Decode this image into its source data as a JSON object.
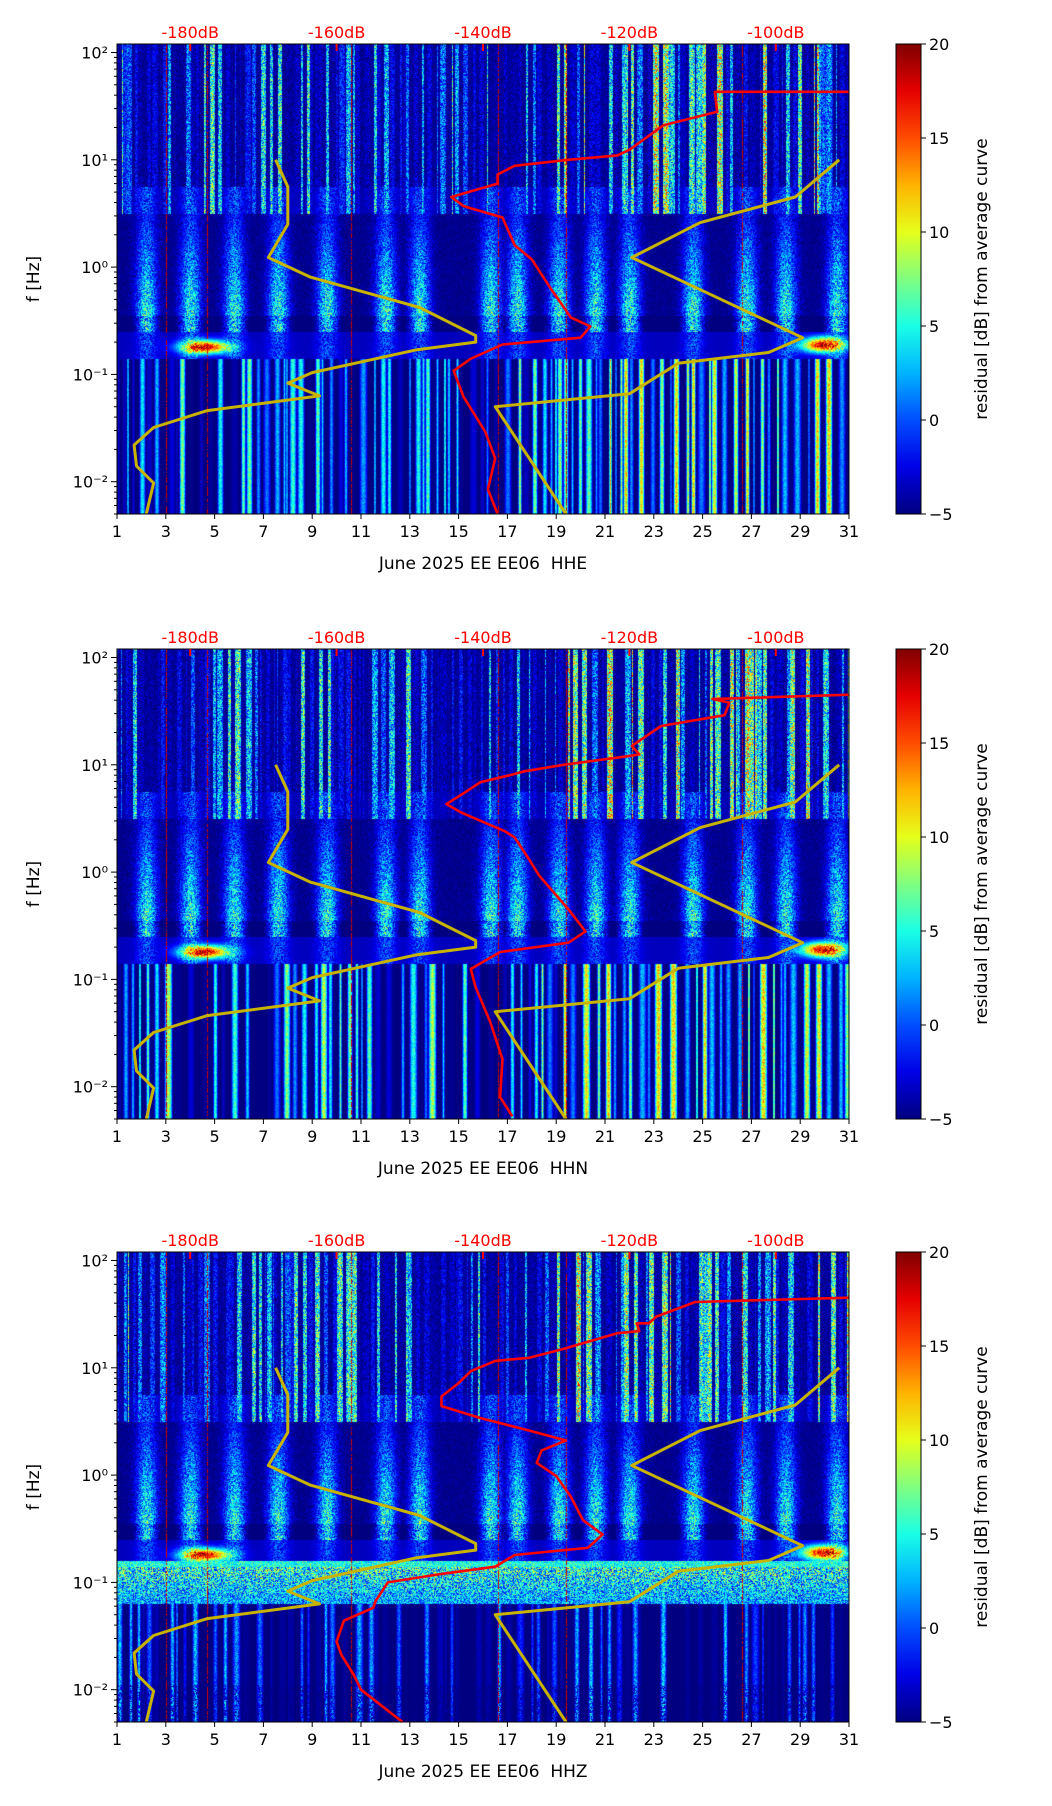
{
  "chart_data": [
    {
      "type": "heatmap",
      "channel": "HHE",
      "xlabel": "June 2025 EE EE06  HHE",
      "ylabel": "f [Hz]",
      "xlim": [
        1,
        31
      ],
      "ylim": [
        0.005,
        120
      ],
      "yscale": "log",
      "x_ticks": [
        1,
        3,
        5,
        7,
        9,
        11,
        13,
        15,
        17,
        19,
        21,
        23,
        25,
        27,
        29,
        31
      ],
      "y_ticks": [
        0.01,
        0.1,
        1,
        10,
        100
      ],
      "y_tick_labels": [
        "10⁻²",
        "10⁻¹",
        "10⁰",
        "10¹",
        "10²"
      ],
      "top_axis": [
        {
          "label": "-180dB",
          "day": 4
        },
        {
          "label": "-160dB",
          "day": 10
        },
        {
          "label": "-140dB",
          "day": 16
        },
        {
          "label": "-120dB",
          "day": 22
        },
        {
          "label": "-100dB",
          "day": 28
        }
      ],
      "colorbar": {
        "label": "residual [dB] from average curve",
        "range": [
          -5,
          20
        ],
        "ticks": [
          -5,
          0,
          5,
          10,
          15,
          20
        ],
        "colormap": "jet"
      },
      "series": [
        {
          "name": "psd-curve",
          "color": "#ff0000",
          "points": [
            [
              31,
              43
            ],
            [
              25.5,
              43
            ],
            [
              25.6,
              28
            ],
            [
              23.4,
              21
            ],
            [
              22,
              12.4
            ],
            [
              21.5,
              11
            ],
            [
              19.5,
              10
            ],
            [
              17.3,
              8.8
            ],
            [
              16.6,
              7.3
            ],
            [
              16.6,
              6
            ],
            [
              14.7,
              4.5
            ],
            [
              15.2,
              3.7
            ],
            [
              16.8,
              2.9
            ],
            [
              17.3,
              1.6
            ],
            [
              18,
              1.18
            ],
            [
              18.8,
              0.62
            ],
            [
              19.6,
              0.34
            ],
            [
              20.4,
              0.28
            ],
            [
              20,
              0.22
            ],
            [
              16.8,
              0.19
            ],
            [
              15.5,
              0.14
            ],
            [
              14.8,
              0.108
            ],
            [
              15.2,
              0.062
            ],
            [
              16.1,
              0.029
            ],
            [
              16.5,
              0.0165
            ],
            [
              16.2,
              0.0085
            ],
            [
              16.6,
              0.005
            ]
          ]
        },
        {
          "name": "model-curve-low",
          "color": "#c8b400",
          "points": [
            [
              7.5,
              10
            ],
            [
              8,
              5.6
            ],
            [
              8,
              2.5
            ],
            [
              7.2,
              1.23
            ],
            [
              8.9,
              0.81
            ],
            [
              13.4,
              0.42
            ],
            [
              15.7,
              0.23
            ],
            [
              15.7,
              0.2
            ],
            [
              13.3,
              0.17
            ],
            [
              9,
              0.104
            ],
            [
              8,
              0.083
            ],
            [
              9.3,
              0.063
            ],
            [
              4.7,
              0.046
            ],
            [
              2.5,
              0.032
            ],
            [
              1.7,
              0.022
            ],
            [
              1.8,
              0.014
            ],
            [
              2.5,
              0.0097
            ],
            [
              2.2,
              0.005
            ]
          ]
        },
        {
          "name": "model-curve-high",
          "color": "#c8b400",
          "points": [
            [
              30.6,
              10
            ],
            [
              28.8,
              4.5
            ],
            [
              24.9,
              2.6
            ],
            [
              22.1,
              1.23
            ],
            [
              29.1,
              0.22
            ],
            [
              27.7,
              0.16
            ],
            [
              24,
              0.127
            ],
            [
              22,
              0.066
            ],
            [
              16.5,
              0.05
            ],
            [
              19.4,
              0.005
            ]
          ]
        }
      ]
    },
    {
      "type": "heatmap",
      "channel": "HHN",
      "xlabel": "June 2025 EE EE06  HHN",
      "ylabel": "f [Hz]",
      "xlim": [
        1,
        31
      ],
      "ylim": [
        0.005,
        120
      ],
      "yscale": "log",
      "x_ticks": [
        1,
        3,
        5,
        7,
        9,
        11,
        13,
        15,
        17,
        19,
        21,
        23,
        25,
        27,
        29,
        31
      ],
      "y_ticks": [
        0.01,
        0.1,
        1,
        10,
        100
      ],
      "y_tick_labels": [
        "10⁻²",
        "10⁻¹",
        "10⁰",
        "10¹",
        "10²"
      ],
      "top_axis": [
        {
          "label": "-180dB",
          "day": 4
        },
        {
          "label": "-160dB",
          "day": 10
        },
        {
          "label": "-140dB",
          "day": 16
        },
        {
          "label": "-120dB",
          "day": 22
        },
        {
          "label": "-100dB",
          "day": 28
        }
      ],
      "colorbar": {
        "label": "residual [dB] from average curve",
        "range": [
          -5,
          20
        ],
        "ticks": [
          -5,
          0,
          5,
          10,
          15,
          20
        ],
        "colormap": "jet"
      },
      "series": [
        {
          "name": "psd-curve",
          "color": "#ff0000",
          "points": [
            [
              31,
              45
            ],
            [
              25.4,
              41
            ],
            [
              26.1,
              38
            ],
            [
              25.9,
              29
            ],
            [
              23.3,
              23
            ],
            [
              22.1,
              15
            ],
            [
              22.4,
              12.5
            ],
            [
              21.9,
              12
            ],
            [
              19.3,
              10
            ],
            [
              17.7,
              8.7
            ],
            [
              17.1,
              8
            ],
            [
              15.9,
              6.9
            ],
            [
              15.4,
              5.8
            ],
            [
              14.5,
              4.3
            ],
            [
              15.1,
              3.6
            ],
            [
              16.9,
              2.4
            ],
            [
              17.3,
              2.1
            ],
            [
              17.9,
              1.3
            ],
            [
              18.3,
              0.93
            ],
            [
              19.5,
              0.45
            ],
            [
              20.2,
              0.28
            ],
            [
              19.5,
              0.22
            ],
            [
              16.7,
              0.18
            ],
            [
              15.5,
              0.125
            ],
            [
              15.7,
              0.084
            ],
            [
              16.3,
              0.04
            ],
            [
              16.8,
              0.018
            ],
            [
              16.7,
              0.008
            ],
            [
              17.2,
              0.0053
            ]
          ]
        },
        {
          "name": "model-curve-low",
          "color": "#c8b400",
          "points": [
            [
              7.5,
              10
            ],
            [
              8,
              5.6
            ],
            [
              8,
              2.5
            ],
            [
              7.2,
              1.23
            ],
            [
              8.9,
              0.81
            ],
            [
              13.4,
              0.42
            ],
            [
              15.7,
              0.23
            ],
            [
              15.7,
              0.2
            ],
            [
              13.3,
              0.17
            ],
            [
              9,
              0.104
            ],
            [
              8,
              0.083
            ],
            [
              9.3,
              0.063
            ],
            [
              4.7,
              0.046
            ],
            [
              2.5,
              0.032
            ],
            [
              1.7,
              0.022
            ],
            [
              1.8,
              0.014
            ],
            [
              2.5,
              0.0097
            ],
            [
              2.2,
              0.005
            ]
          ]
        },
        {
          "name": "model-curve-high",
          "color": "#c8b400",
          "points": [
            [
              30.6,
              10
            ],
            [
              28.8,
              4.5
            ],
            [
              24.9,
              2.6
            ],
            [
              22.1,
              1.23
            ],
            [
              29.1,
              0.22
            ],
            [
              27.7,
              0.16
            ],
            [
              24,
              0.127
            ],
            [
              22,
              0.066
            ],
            [
              16.5,
              0.05
            ],
            [
              19.4,
              0.005
            ]
          ]
        }
      ]
    },
    {
      "type": "heatmap",
      "channel": "HHZ",
      "xlabel": "June 2025 EE EE06  HHZ",
      "ylabel": "f [Hz]",
      "xlim": [
        1,
        31
      ],
      "ylim": [
        0.005,
        120
      ],
      "yscale": "log",
      "x_ticks": [
        1,
        3,
        5,
        7,
        9,
        11,
        13,
        15,
        17,
        19,
        21,
        23,
        25,
        27,
        29,
        31
      ],
      "y_ticks": [
        0.01,
        0.1,
        1,
        10,
        100
      ],
      "y_tick_labels": [
        "10⁻²",
        "10⁻¹",
        "10⁰",
        "10¹",
        "10²"
      ],
      "top_axis": [
        {
          "label": "-180dB",
          "day": 4
        },
        {
          "label": "-160dB",
          "day": 10
        },
        {
          "label": "-140dB",
          "day": 16
        },
        {
          "label": "-120dB",
          "day": 22
        },
        {
          "label": "-100dB",
          "day": 28
        }
      ],
      "colorbar": {
        "label": "residual [dB] from average curve",
        "range": [
          -5,
          20
        ],
        "ticks": [
          -5,
          0,
          5,
          10,
          15,
          20
        ],
        "colormap": "jet"
      },
      "series": [
        {
          "name": "psd-curve",
          "color": "#ff0000",
          "points": [
            [
              31,
              45
            ],
            [
              24.7,
              41
            ],
            [
              23.1,
              30
            ],
            [
              22.8,
              26
            ],
            [
              22.3,
              26
            ],
            [
              22.4,
              22
            ],
            [
              21.5,
              21
            ],
            [
              19.3,
              15
            ],
            [
              17.9,
              12.4
            ],
            [
              16.5,
              11.6
            ],
            [
              15.5,
              9.3
            ],
            [
              15,
              7.2
            ],
            [
              14.3,
              5.4
            ],
            [
              14.3,
              4.4
            ],
            [
              15.9,
              3.4
            ],
            [
              17.9,
              2.6
            ],
            [
              19.4,
              2.1
            ],
            [
              18.4,
              1.7
            ],
            [
              18.2,
              1.3
            ],
            [
              19,
              0.98
            ],
            [
              19.6,
              0.63
            ],
            [
              20.1,
              0.38
            ],
            [
              20.9,
              0.28
            ],
            [
              20.3,
              0.21
            ],
            [
              17.3,
              0.18
            ],
            [
              16.5,
              0.14
            ],
            [
              14.3,
              0.12
            ],
            [
              12.1,
              0.1
            ],
            [
              11.6,
              0.067
            ],
            [
              11.5,
              0.058
            ],
            [
              10.3,
              0.044
            ],
            [
              10,
              0.028
            ],
            [
              10.2,
              0.021
            ],
            [
              10.7,
              0.0138
            ],
            [
              11,
              0.01
            ],
            [
              12.7,
              0.005
            ]
          ]
        },
        {
          "name": "model-curve-low",
          "color": "#c8b400",
          "points": [
            [
              7.5,
              10
            ],
            [
              8,
              5.6
            ],
            [
              8,
              2.5
            ],
            [
              7.2,
              1.23
            ],
            [
              8.9,
              0.81
            ],
            [
              13.4,
              0.42
            ],
            [
              15.7,
              0.23
            ],
            [
              15.7,
              0.2
            ],
            [
              13.3,
              0.17
            ],
            [
              9,
              0.104
            ],
            [
              8,
              0.083
            ],
            [
              9.3,
              0.063
            ],
            [
              4.7,
              0.046
            ],
            [
              2.5,
              0.032
            ],
            [
              1.7,
              0.022
            ],
            [
              1.8,
              0.014
            ],
            [
              2.5,
              0.0097
            ],
            [
              2.2,
              0.005
            ]
          ]
        },
        {
          "name": "model-curve-high",
          "color": "#c8b400",
          "points": [
            [
              30.6,
              10
            ],
            [
              28.8,
              4.5
            ],
            [
              24.9,
              2.6
            ],
            [
              22.1,
              1.23
            ],
            [
              29.1,
              0.22
            ],
            [
              27.7,
              0.16
            ],
            [
              24,
              0.127
            ],
            [
              22,
              0.066
            ],
            [
              16.5,
              0.05
            ],
            [
              19.4,
              0.005
            ]
          ]
        }
      ]
    }
  ]
}
